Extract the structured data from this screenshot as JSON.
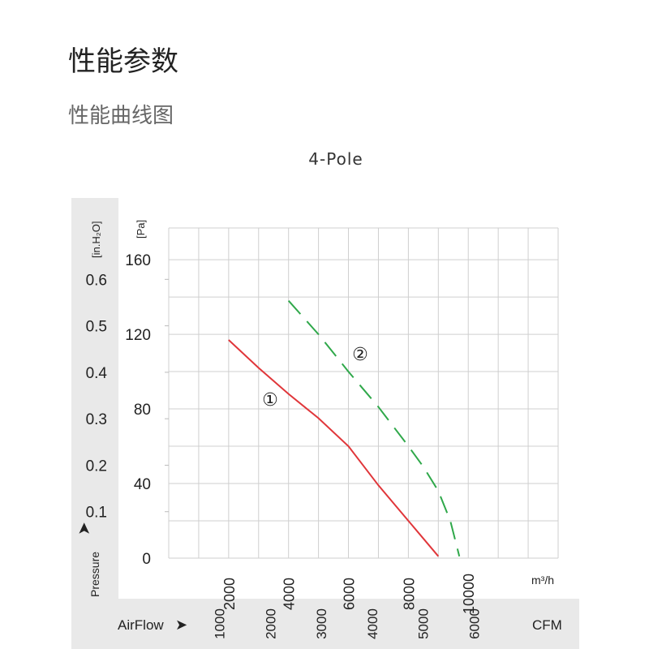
{
  "page": {
    "heading": "性能参数",
    "subheading": "性能曲线图"
  },
  "chart_data": {
    "type": "line",
    "title": "4-Pole",
    "xlabel": "AirFlow",
    "x_unit": "m³/h",
    "x_secondary_unit": "CFM",
    "ylabel": "Pressure",
    "y_unit": "[Pa]",
    "y_secondary_unit": "[in.H₂O]",
    "xlim": [
      0,
      13000
    ],
    "ylim": [
      0,
      177
    ],
    "grid": true,
    "x_ticks": [
      2000,
      4000,
      6000,
      8000,
      10000
    ],
    "x_secondary_ticks": [
      1000,
      2000,
      3000,
      4000,
      5000,
      6000
    ],
    "y_ticks": [
      0,
      40,
      80,
      120,
      160
    ],
    "y_secondary_ticks": [
      0.1,
      0.2,
      0.3,
      0.4,
      0.5,
      0.6
    ],
    "series": [
      {
        "name": "①",
        "color": "#e0363a",
        "style": "solid",
        "x": [
          2000,
          3000,
          4000,
          5000,
          6000,
          7000,
          8000,
          9000
        ],
        "y": [
          117,
          102,
          88,
          75,
          60,
          39,
          20,
          1
        ]
      },
      {
        "name": "②",
        "color": "#2fa84a",
        "style": "dashed",
        "x": [
          4000,
          5000,
          6000,
          7000,
          8000,
          8500,
          9000,
          9400,
          9700
        ],
        "y": [
          138,
          120,
          100,
          81,
          60,
          49,
          36,
          20,
          1
        ]
      }
    ]
  }
}
